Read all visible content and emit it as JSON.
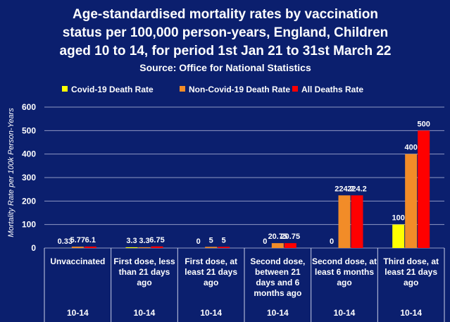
{
  "chart_data": {
    "type": "bar",
    "title_lines": [
      "Age-standardised mortality rates by vaccination",
      "status per 100,000 person-years,  England, Children",
      "aged 10 to 14, for period 1st Jan 21 to 31st March 22"
    ],
    "subtitle": "Source: Office for National Statistics",
    "ylabel": "Mortality Rate per 100k Person-Years",
    "ylim": [
      0,
      600
    ],
    "yticks": [
      0,
      100,
      200,
      300,
      400,
      500,
      600
    ],
    "grid": true,
    "legend_position": "top",
    "categories": [
      [
        "Unvaccinated"
      ],
      [
        "First dose, less",
        "than 21 days",
        "ago"
      ],
      [
        "First dose, at",
        "least 21 days",
        "ago"
      ],
      [
        "Second dose,",
        "between 21",
        "days and 6",
        "months ago"
      ],
      [
        "Second dose, at",
        "least 6 months",
        "ago"
      ],
      [
        "Third dose, at",
        "least 21 days",
        "ago"
      ]
    ],
    "age_groups": [
      "10-14",
      "10-14",
      "10-14",
      "10-14",
      "10-14",
      "10-14"
    ],
    "series": [
      {
        "name": "Covid-19 Death Rate",
        "color": "#ffff00",
        "values": [
          0.33,
          3.3,
          0,
          0,
          0,
          100
        ],
        "labels": [
          "0.33",
          "3.3",
          "0",
          "0",
          "0",
          "100"
        ]
      },
      {
        "name": "Non-Covid-19 Death Rate",
        "color": "#f28c28",
        "values": [
          5.77,
          3.3,
          5,
          20.75,
          224.2,
          400
        ],
        "labels": [
          "5.77",
          "3.3",
          "5",
          "20.75",
          "224.2",
          "400"
        ]
      },
      {
        "name": "All Deaths Rate",
        "color": "#ff0000",
        "values": [
          6.1,
          6.75,
          5,
          20.75,
          224.2,
          500
        ],
        "labels": [
          "6.1",
          "6.75",
          "5",
          "20.75",
          "224.2",
          "500"
        ]
      }
    ]
  }
}
